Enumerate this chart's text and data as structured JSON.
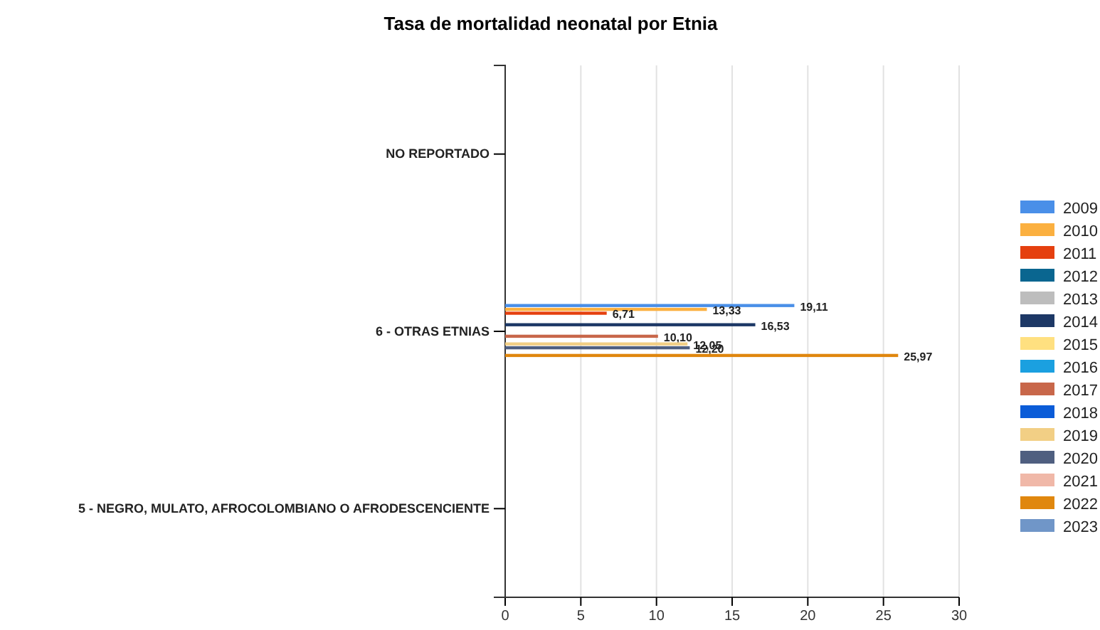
{
  "chart_data": {
    "type": "bar",
    "orientation": "horizontal",
    "title": "Tasa de mortalidad neonatal por Etnia",
    "categories": [
      "NO REPORTADO",
      "6 - OTRAS ETNIAS",
      "5 - NEGRO, MULATO, AFROCOLOMBIANO O AFRODESCENCIENTE"
    ],
    "series": [
      {
        "name": "2009",
        "color": "#4a8fe8",
        "values": [
          null,
          19.11,
          null
        ],
        "value_labels": [
          null,
          "19,11",
          null
        ]
      },
      {
        "name": "2010",
        "color": "#fbb040",
        "values": [
          null,
          13.33,
          null
        ],
        "value_labels": [
          null,
          "13,33",
          null
        ]
      },
      {
        "name": "2011",
        "color": "#e5400f",
        "values": [
          null,
          6.71,
          null
        ],
        "value_labels": [
          null,
          "6,71",
          null
        ]
      },
      {
        "name": "2012",
        "color": "#0a6690",
        "values": [
          null,
          null,
          null
        ]
      },
      {
        "name": "2013",
        "color": "#bdbdbd",
        "values": [
          null,
          null,
          null
        ]
      },
      {
        "name": "2014",
        "color": "#1d3866",
        "values": [
          null,
          16.53,
          null
        ],
        "value_labels": [
          null,
          "16,53",
          null
        ]
      },
      {
        "name": "2015",
        "color": "#ffe080",
        "values": [
          null,
          null,
          null
        ]
      },
      {
        "name": "2016",
        "color": "#1ba0e0",
        "values": [
          null,
          null,
          null
        ]
      },
      {
        "name": "2017",
        "color": "#c8674a",
        "values": [
          null,
          10.1,
          null
        ],
        "value_labels": [
          null,
          "10,10",
          null
        ]
      },
      {
        "name": "2018",
        "color": "#0b5cd8",
        "values": [
          null,
          null,
          null
        ]
      },
      {
        "name": "2019",
        "color": "#f2cf85",
        "values": [
          null,
          12.05,
          null
        ],
        "value_labels": [
          null,
          "12,05",
          null
        ]
      },
      {
        "name": "2020",
        "color": "#4f5f80",
        "values": [
          null,
          12.2,
          null
        ],
        "value_labels": [
          null,
          "12,20",
          null
        ]
      },
      {
        "name": "2021",
        "color": "#f0b8a8",
        "values": [
          null,
          null,
          null
        ]
      },
      {
        "name": "2022",
        "color": "#e0870e",
        "values": [
          null,
          25.97,
          null
        ],
        "value_labels": [
          null,
          "25,97",
          null
        ]
      },
      {
        "name": "2023",
        "color": "#7096c8",
        "values": [
          null,
          null,
          null
        ]
      }
    ],
    "xlim": [
      0,
      30
    ],
    "xticks": [
      0,
      5,
      10,
      15,
      20,
      25,
      30
    ],
    "grid": "x",
    "legend": "right"
  }
}
